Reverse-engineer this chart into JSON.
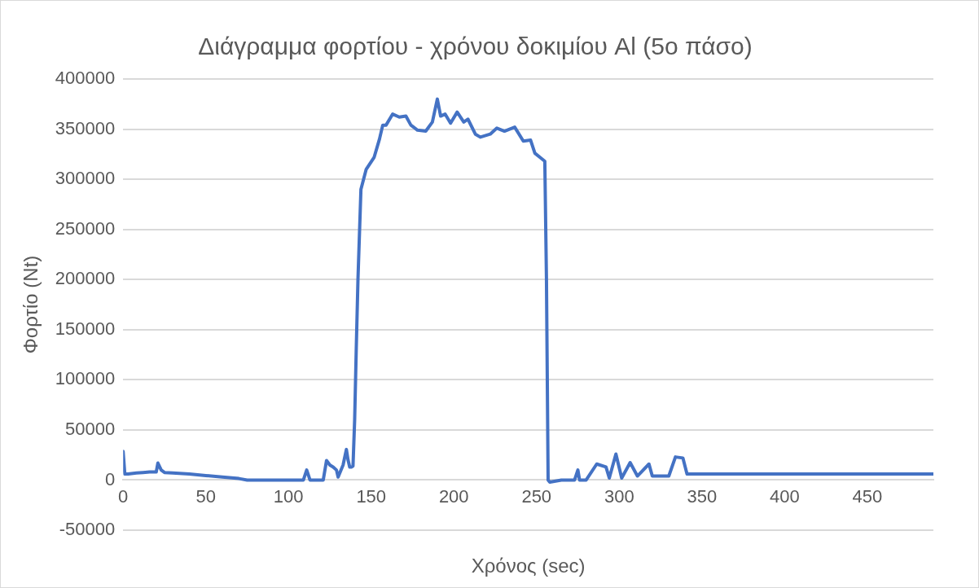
{
  "chart_data": {
    "type": "line",
    "title": "Διάγραμμα φορτίου - χρόνου δοκιμίου Al (5ο πάσο)",
    "xlabel": "Χρόνος (sec)",
    "ylabel": "Φορτίο (Nt)",
    "x": [
      0,
      1,
      3,
      8,
      12,
      16,
      20,
      21,
      23,
      25,
      30,
      40,
      50,
      60,
      70,
      75,
      90,
      105,
      109,
      111,
      113,
      121,
      123,
      125,
      127,
      129,
      130,
      133,
      135,
      136,
      137,
      138,
      139,
      140,
      141,
      142,
      143.8,
      147,
      151.8,
      155,
      157,
      159,
      163,
      167,
      171,
      174,
      178,
      183,
      187,
      190,
      192,
      194.7,
      198,
      202,
      206,
      208.5,
      213,
      216,
      222,
      226,
      230.6,
      236.8,
      242,
      246.4,
      249,
      253.5,
      255,
      256,
      257,
      258,
      265,
      273,
      275,
      276,
      280,
      286.4,
      292,
      294,
      298,
      301.5,
      306.6,
      311,
      318,
      320,
      330,
      334,
      338.5,
      341,
      345,
      400,
      490
    ],
    "series": [
      {
        "color": "#4472c4",
        "values": [
          28500,
          6000,
          6000,
          7000,
          7500,
          8000,
          8000,
          17000,
          10000,
          7500,
          7000,
          6000,
          4500,
          3000,
          1500,
          0,
          0,
          0,
          0,
          10000,
          0,
          0,
          19500,
          15000,
          13000,
          10000,
          3000,
          15000,
          30500,
          20000,
          13000,
          13000,
          14000,
          60000,
          133000,
          200000,
          290000,
          310000,
          322000,
          340000,
          354000,
          354000,
          365000,
          362000,
          363000,
          354000,
          349000,
          348000,
          357000,
          380000,
          363000,
          365000,
          356000,
          367000,
          357000,
          360000,
          345000,
          342000,
          345000,
          351000,
          348000,
          352000,
          338000,
          339000,
          326000,
          320000,
          318000,
          200000,
          0,
          -2000,
          0,
          0,
          10000,
          0,
          0,
          16000,
          13000,
          2000,
          26000,
          2000,
          17400,
          4000,
          16000,
          4000,
          4000,
          23000,
          22000,
          6000,
          6000,
          6000,
          6000
        ]
      }
    ],
    "xlim": [
      0,
      490
    ],
    "xticks": [
      0,
      50,
      100,
      150,
      200,
      250,
      300,
      350,
      400,
      450
    ],
    "ylim": [
      -50000,
      400000
    ],
    "yticks": [
      -50000,
      0,
      50000,
      100000,
      150000,
      200000,
      250000,
      300000,
      350000,
      400000
    ],
    "grid": "y",
    "legend": false,
    "marker": "none",
    "line_style": "solid"
  }
}
